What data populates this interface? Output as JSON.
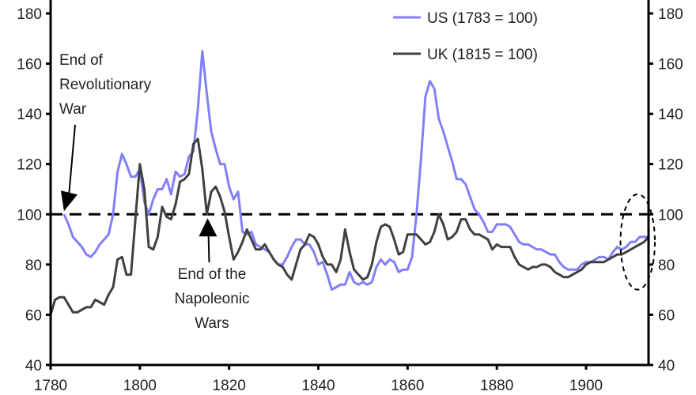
{
  "chart_data": {
    "type": "line",
    "title": "",
    "xlabel": "",
    "ylabel": "",
    "xlim": [
      1780,
      1914
    ],
    "ylim": [
      40,
      180
    ],
    "y_ticks": [
      40,
      60,
      80,
      100,
      120,
      140,
      160,
      180
    ],
    "x_ticks": [
      1780,
      1800,
      1820,
      1840,
      1860,
      1880,
      1900
    ],
    "y_tick_labels": [
      "40",
      "60",
      "80",
      "100",
      "120",
      "140",
      "160",
      "180"
    ],
    "x_tick_labels": [
      "1780",
      "1800",
      "1820",
      "1840",
      "1860",
      "1880",
      "1900"
    ],
    "right_axis_tick_labels": [
      "40",
      "60",
      "80",
      "100",
      "120",
      "140",
      "160",
      "180"
    ],
    "grid": false,
    "legend_position": "top-right",
    "reference_line": 100,
    "series": [
      {
        "name": "US (1783 = 100)",
        "color": "#8080f8",
        "start_year": 1783,
        "values": [
          100,
          96,
          91,
          89,
          87,
          84,
          83,
          85,
          88,
          90,
          92,
          100,
          117,
          124,
          120,
          115,
          115,
          118,
          105,
          100,
          106,
          110,
          110,
          114,
          108,
          117,
          115,
          116,
          123,
          125,
          142,
          165,
          148,
          133,
          126,
          120,
          120,
          111,
          106,
          109,
          93,
          92,
          93,
          88,
          87,
          86,
          85,
          82,
          80,
          80,
          83,
          87,
          90,
          90,
          88,
          88,
          85,
          80,
          81,
          76,
          70,
          71,
          72,
          72,
          77,
          73,
          72,
          73,
          72,
          73,
          79,
          82,
          80,
          82,
          81,
          77,
          78,
          78,
          83,
          100,
          122,
          147,
          153,
          150,
          138,
          133,
          127,
          121,
          114,
          114,
          112,
          107,
          102,
          100,
          97,
          93,
          93,
          96,
          96,
          96,
          95,
          92,
          89,
          88,
          88,
          87,
          86,
          86,
          85,
          84,
          84,
          81,
          79,
          78,
          78,
          78,
          80,
          81,
          81,
          82,
          83,
          83,
          82,
          85,
          87,
          86,
          87,
          89,
          89,
          91,
          91,
          91
        ]
      },
      {
        "name": "UK (1815 = 100)",
        "color": "#404040",
        "start_year": 1780,
        "values": [
          60,
          66,
          67,
          67,
          64,
          61,
          61,
          62,
          63,
          63,
          66,
          65,
          64,
          68,
          71,
          82,
          83,
          76,
          76,
          98,
          120,
          110,
          87,
          86,
          91,
          103,
          99,
          98,
          104,
          113,
          114,
          116,
          128,
          130,
          118,
          100,
          109,
          111,
          107,
          101,
          91,
          82,
          85,
          89,
          94,
          90,
          86,
          86,
          88,
          85,
          82,
          80,
          79,
          76,
          74,
          80,
          86,
          88,
          92,
          91,
          88,
          83,
          80,
          80,
          77,
          82,
          94,
          85,
          78,
          76,
          74,
          75,
          80,
          89,
          95,
          96,
          95,
          90,
          84,
          85,
          92,
          92,
          92,
          90,
          88,
          89,
          93,
          100,
          96,
          90,
          91,
          93,
          98,
          98,
          94,
          92,
          92,
          91,
          90,
          86,
          88,
          87,
          87,
          87,
          83,
          80,
          79,
          78,
          79,
          79,
          80,
          80,
          79,
          77,
          76,
          75,
          75,
          76,
          77,
          78,
          80,
          81,
          81,
          81,
          81,
          82,
          83,
          84,
          84,
          85,
          86,
          87,
          88,
          89,
          91
        ]
      }
    ],
    "annotations": [
      {
        "lines": [
          "End of",
          "Revolutionary",
          "War"
        ],
        "points_to_year": 1783,
        "points_to_value": 100
      },
      {
        "lines": [
          "End of the",
          "Napoleonic",
          "Wars"
        ],
        "points_to_year": 1815,
        "points_to_value": 100
      }
    ],
    "highlight": {
      "shape": "dashed-ellipse",
      "year_range": [
        1907,
        1914
      ],
      "value_range": [
        70,
        108
      ]
    }
  }
}
